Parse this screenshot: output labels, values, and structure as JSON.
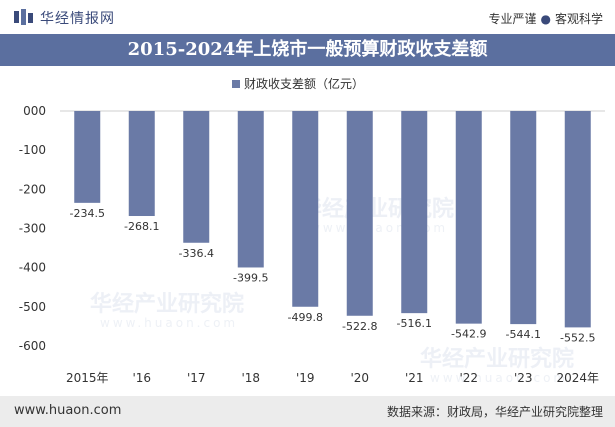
{
  "header": {
    "brand": "华经情报网",
    "tagline_left": "专业严谨",
    "tagline_right": "客观科学"
  },
  "title": "2015-2024年上饶市一般预算财政收支差额",
  "legend": "财政收支差额（亿元）",
  "colors": {
    "bar": "#6a7aa6",
    "title_bg": "#5b6f9f"
  },
  "watermark": "华经产业研究院",
  "watermark_url": "www.huaon.com",
  "footer": {
    "url": "www.huaon.com",
    "source": "数据来源：财政局，华经产业研究院整理"
  },
  "chart_data": {
    "type": "bar",
    "categories": [
      "2015年",
      "'16",
      "'17",
      "'18",
      "'19",
      "'20",
      "'21",
      "'22",
      "'23",
      "2024年"
    ],
    "series": [
      {
        "name": "财政收支差额（亿元）",
        "values": [
          -234.5,
          -268.1,
          -336.4,
          -399.5,
          -499.8,
          -522.8,
          -516.1,
          -542.9,
          -544.1,
          -552.5
        ]
      }
    ],
    "data_labels": [
      "-234.5",
      "-268.1",
      "-336.4",
      "-399.5",
      "-499.8",
      "-522.8",
      "-516.1",
      "-542.9",
      "-544.1",
      "-552.5"
    ],
    "y_ticks": [
      "000",
      "-100",
      "-200",
      "-300",
      "-400",
      "-500",
      "-600"
    ],
    "y_tick_values": [
      0,
      -100,
      -200,
      -300,
      -400,
      -500,
      -600
    ],
    "ylim": [
      -600,
      0
    ],
    "grid": false,
    "legend_position": "top-center"
  }
}
